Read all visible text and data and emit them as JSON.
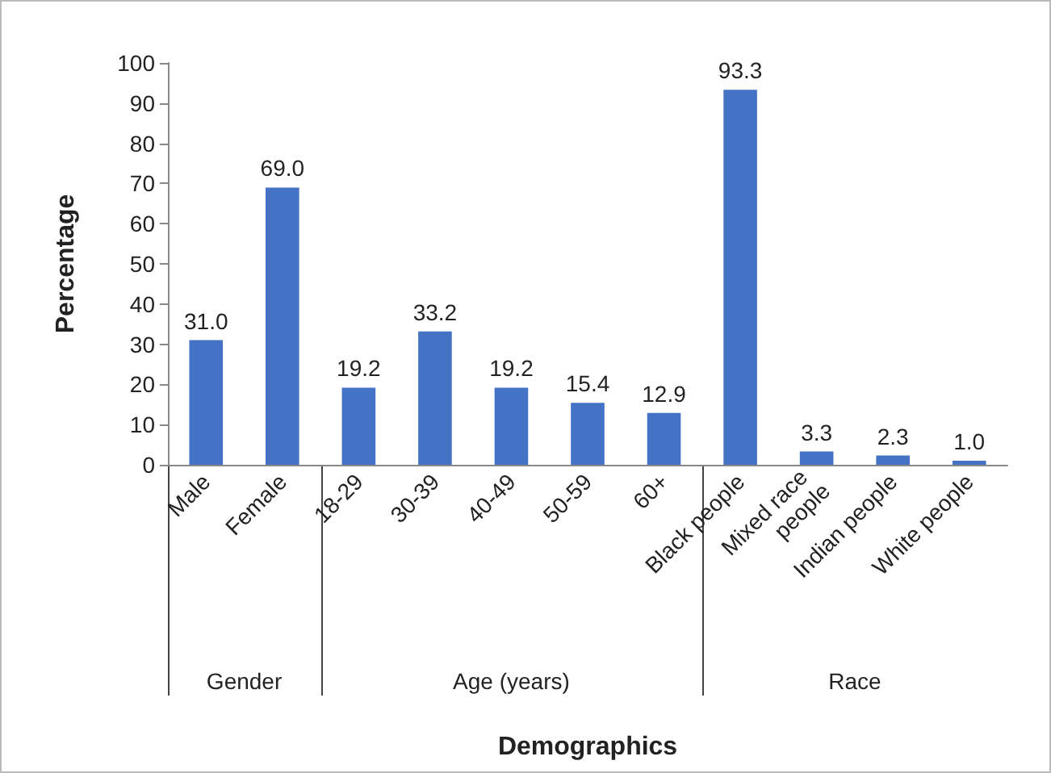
{
  "chart_data": {
    "type": "bar",
    "ylabel": "Percentage",
    "categories": [
      "Male",
      "Female",
      "18-29",
      "30-39",
      "40-49",
      "50-59",
      "60+",
      "Black people",
      "Mixed race people",
      "Indian people",
      "White people"
    ],
    "values": [
      31.0,
      69.0,
      19.2,
      33.2,
      19.2,
      15.4,
      12.9,
      93.3,
      3.3,
      2.3,
      1.0
    ],
    "value_labels": [
      "31.0",
      "69.0",
      "19.2",
      "33.2",
      "19.2",
      "15.4",
      "12.9",
      "93.3",
      "3.3",
      "2.3",
      "1.0"
    ],
    "color": "#4472c4",
    "ylim": [
      0,
      100
    ],
    "yticks": [
      0,
      10,
      20,
      30,
      40,
      50,
      60,
      70,
      80,
      90,
      100
    ],
    "annotations": [
      "Gender",
      "Age (years)",
      "Race",
      "Demographics"
    ],
    "grid": false
  }
}
